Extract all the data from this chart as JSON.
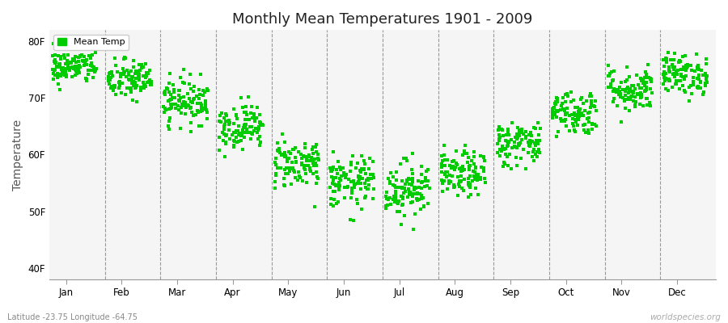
{
  "title": "Monthly Mean Temperatures 1901 - 2009",
  "ylabel": "Temperature",
  "xlabel_labels": [
    "Jan",
    "Feb",
    "Mar",
    "Apr",
    "May",
    "Jun",
    "Jul",
    "Aug",
    "Sep",
    "Oct",
    "Nov",
    "Dec"
  ],
  "ytick_labels": [
    "40F",
    "50F",
    "60F",
    "70F",
    "80F"
  ],
  "ytick_values": [
    40,
    50,
    60,
    70,
    80
  ],
  "ylim": [
    38,
    82
  ],
  "dot_color": "#00CC00",
  "dot_size": 6,
  "background_color": "#ffffff",
  "plot_bg_color": "#f5f5f5",
  "subtitle": "Latitude -23.75 Longitude -64.75",
  "watermark": "worldspecies.org",
  "legend_label": "Mean Temp",
  "monthly_means": [
    75.5,
    73.2,
    69.5,
    65.0,
    58.5,
    55.0,
    54.0,
    56.5,
    62.0,
    67.5,
    71.5,
    74.2
  ],
  "monthly_stds": [
    1.5,
    1.8,
    2.0,
    2.0,
    2.2,
    2.3,
    2.5,
    2.0,
    2.0,
    2.0,
    2.0,
    1.8
  ],
  "n_years": 109,
  "seed": 42
}
